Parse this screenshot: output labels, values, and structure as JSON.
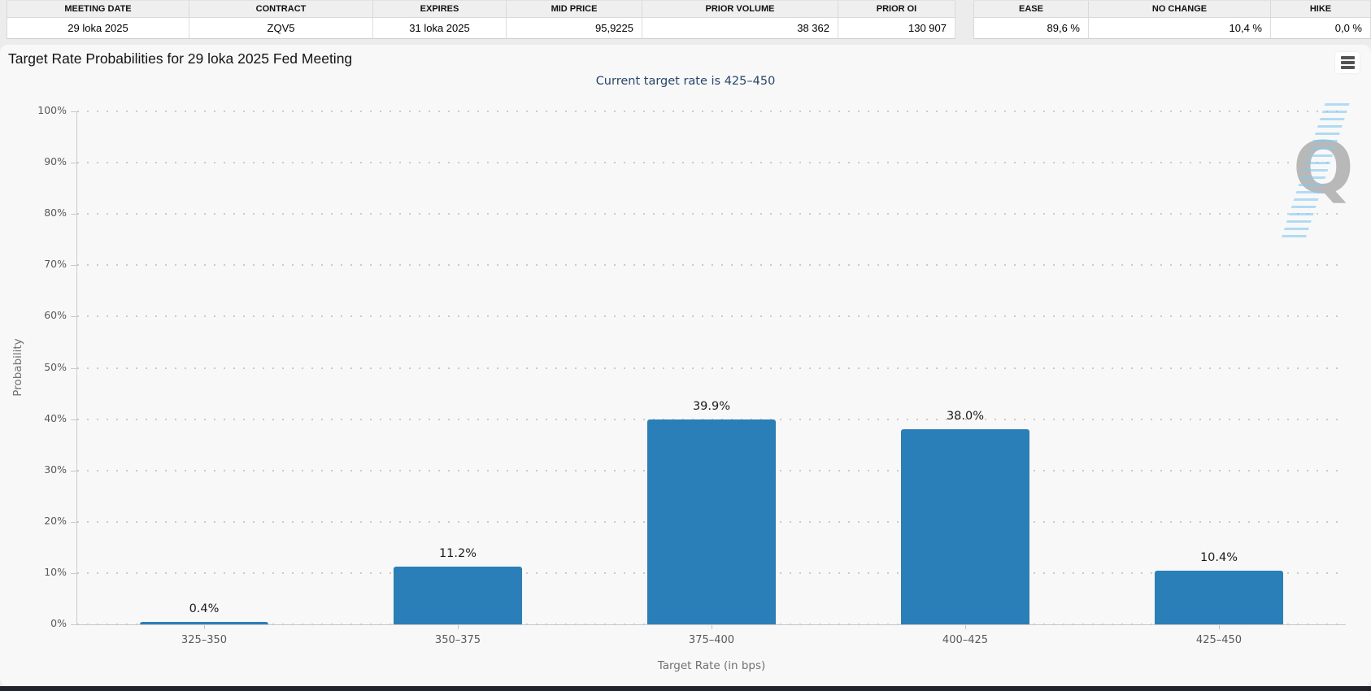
{
  "quote_table": {
    "headers": [
      "MEETING DATE",
      "CONTRACT",
      "EXPIRES",
      "MID PRICE",
      "PRIOR VOLUME",
      "PRIOR OI"
    ],
    "values": [
      "29 loka 2025",
      "ZQV5",
      "31 loka 2025",
      "95,9225",
      "38 362",
      "130 907"
    ],
    "aligns": [
      "center",
      "center",
      "center",
      "right",
      "right",
      "right"
    ],
    "widths": [
      225,
      226,
      164,
      167,
      241,
      144
    ]
  },
  "probability_table": {
    "headers": [
      "EASE",
      "NO CHANGE",
      "HIKE"
    ],
    "values": [
      "89,6 %",
      "10,4 %",
      "0,0 %"
    ],
    "aligns": [
      "right",
      "right",
      "right"
    ],
    "widths": [
      142,
      224,
      123
    ]
  },
  "chart": {
    "title": "Target Rate Probabilities for 29 loka 2025 Fed Meeting",
    "subtitle": "Current target rate is 425–450",
    "subtitle_color": "#26466d",
    "watermark_letter": "Q",
    "export_menu_icon": "hamburger-icon"
  },
  "chart_data": {
    "type": "bar",
    "categories": [
      "325–350",
      "350–375",
      "375–400",
      "400–425",
      "425–450"
    ],
    "values": [
      0.4,
      11.2,
      39.9,
      38.0,
      10.4
    ],
    "data_labels": [
      "0.4%",
      "11.2%",
      "39.9%",
      "38.0%",
      "10.4%"
    ],
    "title": "Target Rate Probabilities for 29 loka 2025 Fed Meeting",
    "subtitle": "Current target rate is 425–450",
    "xlabel": "Target Rate (in bps)",
    "ylabel": "Probability",
    "ylim": [
      0,
      100
    ],
    "ytick_step": 10,
    "ytick_suffix": "%",
    "bar_color": "#2b7fb9",
    "grid": "dotted-horizontal",
    "legend": "none"
  }
}
